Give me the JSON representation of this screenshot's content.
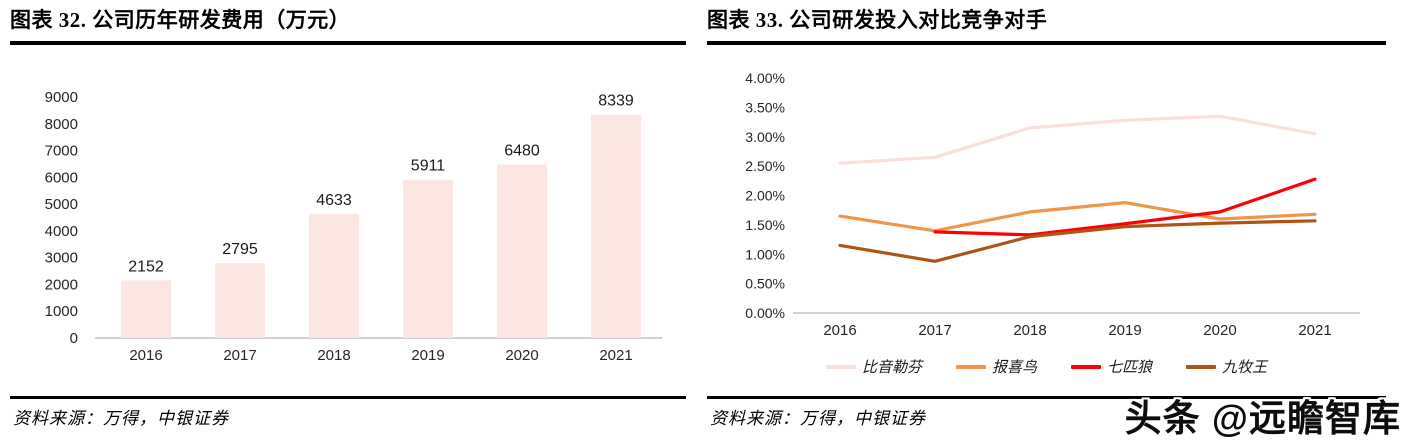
{
  "panels": [
    {
      "title": "图表 32. 公司历年研发费用（万元）",
      "source": "资料来源：万得，中银证券"
    },
    {
      "title": "图表 33. 公司研发投入对比竞争对手",
      "source": "资料来源：万得，中银证券"
    }
  ],
  "watermark": "头条 @远瞻智库",
  "colors": {
    "bar_fill": "#fbe6e2",
    "axis_line": "#c0c0c0",
    "rule_black": "#000000"
  },
  "chart_data": [
    {
      "type": "bar",
      "title": "公司历年研发费用（万元）",
      "categories": [
        "2016",
        "2017",
        "2018",
        "2019",
        "2020",
        "2021"
      ],
      "values": [
        2152,
        2795,
        4633,
        5911,
        6480,
        8339
      ],
      "xlabel": "",
      "ylabel": "",
      "ylim": [
        0,
        9000
      ],
      "ytick_step": 1000,
      "bar_color": "#fbe6e2",
      "grid": false,
      "data_labels": true,
      "legend_position": "none"
    },
    {
      "type": "line",
      "title": "公司研发投入对比竞争对手",
      "x": [
        "2016",
        "2017",
        "2018",
        "2019",
        "2020",
        "2021"
      ],
      "series": [
        {
          "name": "比音勒芬",
          "color": "#fadfdb",
          "values": [
            2.55,
            2.65,
            3.15,
            3.28,
            3.35,
            3.05
          ]
        },
        {
          "name": "报喜鸟",
          "color": "#f0954a",
          "values": [
            1.65,
            1.4,
            1.72,
            1.88,
            1.6,
            1.68
          ]
        },
        {
          "name": "七匹狼",
          "color": "#ff0000",
          "values": [
            null,
            1.38,
            1.33,
            1.52,
            1.72,
            2.28
          ]
        },
        {
          "name": "九牧王",
          "color": "#ae5414",
          "values": [
            1.15,
            0.88,
            1.3,
            1.47,
            1.53,
            1.57
          ]
        }
      ],
      "unit": "%",
      "ylim": [
        0,
        4.0
      ],
      "ytick_step": 0.5,
      "ytick_format": "percent2",
      "grid": false,
      "legend_position": "bottom"
    }
  ]
}
